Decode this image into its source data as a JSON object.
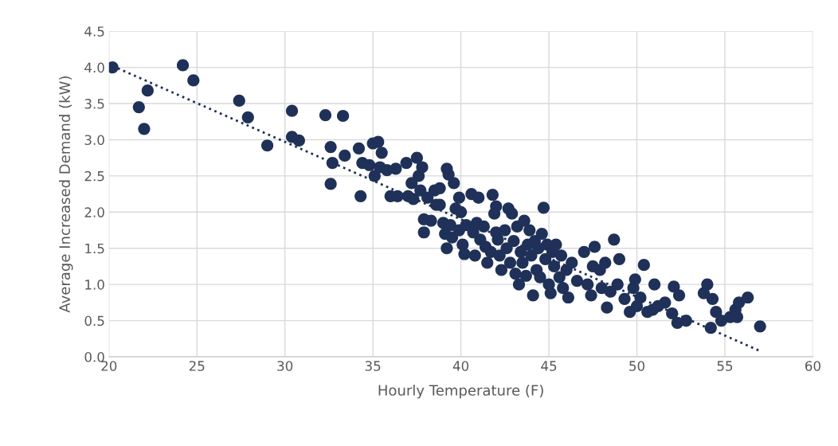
{
  "chart_data": {
    "type": "scatter",
    "xlabel": "Hourly Temperature (F)",
    "ylabel": "Average Increased Demand (kW)",
    "xlim": [
      20,
      60
    ],
    "xticks": [
      20,
      25,
      30,
      35,
      40,
      45,
      50,
      55,
      60
    ],
    "ylim": [
      0,
      4.5
    ],
    "yticks": [
      {
        "value": 0,
        "label": "0.0"
      },
      {
        "value": 0.5,
        "label": "0.5"
      },
      {
        "value": 1,
        "label": "1.0"
      },
      {
        "value": 1.5,
        "label": "1.5"
      },
      {
        "value": 2,
        "label": "2.0"
      },
      {
        "value": 2.5,
        "label": "2.5"
      },
      {
        "value": 3,
        "label": "3.0"
      },
      {
        "value": 3.5,
        "label": "3.5"
      },
      {
        "value": 4,
        "label": "4.0"
      },
      {
        "value": 4.5,
        "label": "4.5"
      }
    ],
    "grid": true,
    "legend": false,
    "series": [
      {
        "color": "#1f3158",
        "marker": "circle",
        "x": [
          20.2,
          21.7,
          22.0,
          22.2,
          24.2,
          24.8,
          27.4,
          27.9,
          29.0,
          30.4,
          30.4,
          30.8,
          32.3,
          32.6,
          32.6,
          32.7,
          33.3,
          33.4,
          34.2,
          34.3,
          34.4,
          34.8,
          35.0,
          35.1,
          35.3,
          35.4,
          35.5,
          35.8,
          36.0,
          36.3,
          36.4,
          36.9,
          37.0,
          37.2,
          37.3,
          37.5,
          37.6,
          37.7,
          37.8,
          37.9,
          37.9,
          38.1,
          38.3,
          38.5,
          38.6,
          38.8,
          38.8,
          39.0,
          39.1,
          39.2,
          39.2,
          39.3,
          39.4,
          39.5,
          39.6,
          39.7,
          39.9,
          39.9,
          40.0,
          40.1,
          40.2,
          40.3,
          40.6,
          40.7,
          40.8,
          40.9,
          41.0,
          41.1,
          41.3,
          41.4,
          41.5,
          41.7,
          41.8,
          41.9,
          42.0,
          42.0,
          42.1,
          42.2,
          42.3,
          42.5,
          42.6,
          42.7,
          42.8,
          42.9,
          43.0,
          43.1,
          43.2,
          43.3,
          43.4,
          43.5,
          43.6,
          43.7,
          43.8,
          43.9,
          44.0,
          44.1,
          44.2,
          44.3,
          44.4,
          44.5,
          44.6,
          44.7,
          44.8,
          44.9,
          45.0,
          45.1,
          45.2,
          45.3,
          45.4,
          45.6,
          45.7,
          45.8,
          46.0,
          46.1,
          46.3,
          46.6,
          47.0,
          47.2,
          47.4,
          47.5,
          47.6,
          47.9,
          48.0,
          48.2,
          48.3,
          48.5,
          48.7,
          48.9,
          49.0,
          49.3,
          49.6,
          49.8,
          49.9,
          50.0,
          50.2,
          50.4,
          50.6,
          50.9,
          51.0,
          51.2,
          51.6,
          52.0,
          52.1,
          52.3,
          52.4,
          52.8,
          53.8,
          54.0,
          54.2,
          54.3,
          54.5,
          54.8,
          55.3,
          55.6,
          55.7,
          55.8,
          56.3,
          57.0
        ],
        "values": [
          4.0,
          3.45,
          3.15,
          3.68,
          4.03,
          3.82,
          3.54,
          3.31,
          2.92,
          3.4,
          3.04,
          2.99,
          3.34,
          2.9,
          2.39,
          2.68,
          3.33,
          2.78,
          2.88,
          2.22,
          2.68,
          2.65,
          2.95,
          2.5,
          2.97,
          2.62,
          2.82,
          2.58,
          2.22,
          2.6,
          2.22,
          2.68,
          2.22,
          2.4,
          2.18,
          2.75,
          2.5,
          2.3,
          2.62,
          1.9,
          1.72,
          2.2,
          1.88,
          2.3,
          2.1,
          2.33,
          2.1,
          1.85,
          1.7,
          2.6,
          1.5,
          2.52,
          1.82,
          1.65,
          2.4,
          2.05,
          2.2,
          1.75,
          2.0,
          1.55,
          1.42,
          1.82,
          2.25,
          1.72,
          1.4,
          1.85,
          2.2,
          1.62,
          1.8,
          1.52,
          1.3,
          1.45,
          2.24,
          1.98,
          2.08,
          1.72,
          1.62,
          1.4,
          1.2,
          1.75,
          1.5,
          2.05,
          1.3,
          1.98,
          1.6,
          1.15,
          1.8,
          1.0,
          1.45,
          1.3,
          1.88,
          1.12,
          1.55,
          1.75,
          1.4,
          0.85,
          1.6,
          1.2,
          1.5,
          1.1,
          1.7,
          2.06,
          1.35,
          1.55,
          1.0,
          0.88,
          1.45,
          1.25,
          1.55,
          1.1,
          1.4,
          0.95,
          1.2,
          0.82,
          1.3,
          1.05,
          1.45,
          1.0,
          0.85,
          1.25,
          1.52,
          1.2,
          0.95,
          1.3,
          0.68,
          0.9,
          1.62,
          1.0,
          1.35,
          0.8,
          0.62,
          0.95,
          1.07,
          0.7,
          0.82,
          1.27,
          0.62,
          0.65,
          1.0,
          0.7,
          0.75,
          0.6,
          0.97,
          0.47,
          0.85,
          0.5,
          0.88,
          1.0,
          0.4,
          0.8,
          0.62,
          0.5,
          0.55,
          0.65,
          0.55,
          0.75,
          0.82,
          0.42
        ]
      },
      {
        "type": "line",
        "color": "#1f3158",
        "line_style": "dotted",
        "marker": "none",
        "x": [
          20.2,
          57.0
        ],
        "values": [
          4.02,
          0.08
        ]
      }
    ]
  }
}
